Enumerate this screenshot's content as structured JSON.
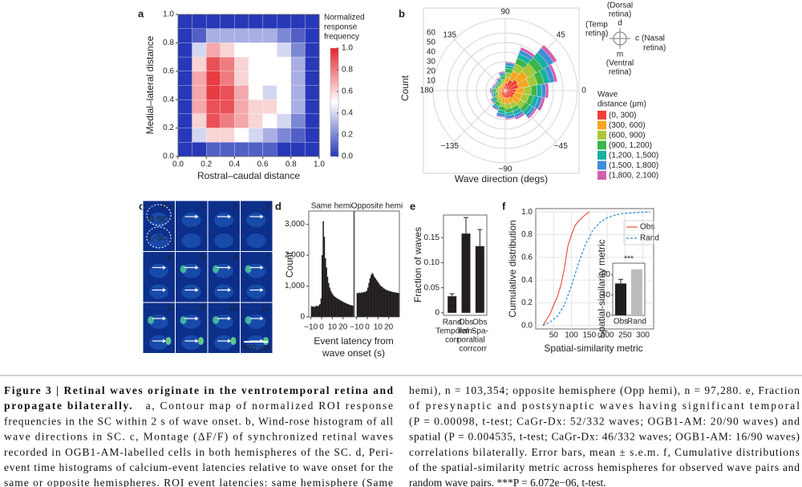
{
  "chart_data": [
    {
      "type": "heatmap",
      "label": "a",
      "xlabel": "Rostral–caudal distance",
      "ylabel": "Medial–lateral distance",
      "colorbar_title": [
        "Normalized",
        "response",
        "frequency"
      ],
      "x": [
        0.05,
        0.15,
        0.25,
        0.35,
        0.45,
        0.55,
        0.65,
        0.75,
        0.85,
        0.95
      ],
      "y": [
        0.95,
        0.85,
        0.75,
        0.65,
        0.55,
        0.45,
        0.35,
        0.25,
        0.15,
        0.05
      ],
      "z": [
        [
          0,
          0,
          0,
          0,
          0,
          0,
          0,
          0,
          0,
          0
        ],
        [
          0,
          0.1,
          0.3,
          0.3,
          0.3,
          0.3,
          0.3,
          0.2,
          0.1,
          0
        ],
        [
          0,
          0.4,
          0.7,
          0.6,
          0.5,
          0.5,
          0.5,
          0.4,
          0.2,
          0
        ],
        [
          0,
          0.6,
          0.9,
          0.8,
          0.6,
          0.5,
          0.5,
          0.5,
          0.3,
          0
        ],
        [
          0,
          0.7,
          0.95,
          0.8,
          0.6,
          0.5,
          0.5,
          0.5,
          0.3,
          0
        ],
        [
          0,
          0.7,
          0.95,
          0.9,
          0.7,
          0.5,
          0.4,
          0.5,
          0.3,
          0
        ],
        [
          0,
          0.7,
          0.9,
          0.9,
          0.7,
          0.6,
          0.6,
          0.5,
          0.3,
          0
        ],
        [
          0,
          0.6,
          0.9,
          0.8,
          0.7,
          0.6,
          0.5,
          0.4,
          0.2,
          0
        ],
        [
          0,
          0.4,
          0.6,
          0.6,
          0.5,
          0.4,
          0.3,
          0.2,
          0.1,
          0
        ],
        [
          0,
          0,
          0.1,
          0.1,
          0.1,
          0.1,
          0.1,
          0,
          0,
          0
        ]
      ],
      "colormap": [
        "#2738b8",
        "#ffffff",
        "#e3262d"
      ],
      "xlim": [
        0,
        1
      ],
      "ylim": [
        0,
        1
      ],
      "zlim": [
        0,
        1
      ],
      "xticks": [
        {
          "value": 0,
          "label": "0.0"
        },
        0.2,
        0.4,
        0.6,
        0.8,
        {
          "value": 1,
          "label": "1.0"
        }
      ],
      "yticks": [
        {
          "value": 0,
          "label": "0.0"
        },
        0.2,
        0.4,
        0.6,
        0.8,
        {
          "value": 1,
          "label": "1.0"
        }
      ],
      "zticks": [
        {
          "value": 0,
          "label": "0.0"
        },
        0.2,
        0.4,
        0.6,
        0.8,
        {
          "value": 1,
          "label": "1.0"
        }
      ]
    },
    {
      "type": "polar_bar",
      "label": "b",
      "xlabel": "Wave direction (degs)",
      "ylabel": "Count",
      "x": [
        0,
        20,
        40,
        60,
        80,
        100,
        120,
        140,
        160,
        180,
        200,
        220,
        240,
        260,
        280,
        300,
        320,
        340
      ],
      "series": [
        {
          "name": "(0, 300)",
          "color": "#ee4036",
          "values": [
            11,
            14,
            15,
            12,
            8,
            5,
            4,
            3,
            4,
            4,
            4,
            5,
            6,
            7,
            8,
            8,
            10,
            10
          ]
        },
        {
          "name": "(300, 600)",
          "color": "#f5a623",
          "values": [
            9,
            11,
            12,
            10,
            6,
            4,
            3,
            3,
            3,
            3,
            3,
            4,
            4,
            6,
            6,
            6,
            8,
            8
          ]
        },
        {
          "name": "(600, 900)",
          "color": "#a6c83a",
          "values": [
            7,
            9,
            10,
            8,
            5,
            3,
            2,
            2,
            2,
            3,
            2,
            3,
            4,
            4,
            5,
            5,
            6,
            7
          ]
        },
        {
          "name": "(900, 1,200)",
          "color": "#3cb54a",
          "values": [
            6,
            7,
            8,
            6,
            4,
            3,
            2,
            2,
            2,
            2,
            2,
            2,
            3,
            4,
            4,
            4,
            5,
            5
          ]
        },
        {
          "name": "(1,200, 1,500)",
          "color": "#19b0a2",
          "values": [
            5,
            6,
            7,
            5,
            3,
            2,
            2,
            1,
            1,
            2,
            2,
            2,
            2,
            3,
            3,
            4,
            4,
            5
          ]
        },
        {
          "name": "(1,500, 1,800)",
          "color": "#3d8fd8",
          "values": [
            4,
            5,
            6,
            4,
            3,
            2,
            1,
            1,
            1,
            1,
            1,
            1,
            2,
            3,
            3,
            3,
            3,
            4
          ]
        },
        {
          "name": "(1,800, 2,100)",
          "color": "#d35fae",
          "values": [
            3,
            3,
            4,
            3,
            1,
            1,
            1,
            1,
            1,
            1,
            1,
            1,
            1,
            1,
            1,
            2,
            2,
            3
          ]
        }
      ],
      "legend_title": [
        "Wave",
        "distance (μm)"
      ],
      "ylim": [
        0,
        75
      ],
      "yticks": [
        10,
        20,
        30,
        40,
        50,
        60
      ],
      "xticks": [
        90,
        45,
        0,
        {
          "value": -45,
          "label": "−45"
        },
        {
          "value": -90,
          "label": "−90"
        },
        {
          "value": -135,
          "label": "−135"
        },
        180,
        135
      ],
      "compass_labels": [
        "(Dorsal",
        "retina)",
        "d",
        "(Temp",
        "retina)",
        "r",
        "c",
        "(Nasal",
        "retina)",
        "m",
        "(Ventral",
        "retina)"
      ]
    },
    {
      "type": "histogram",
      "label": "d",
      "ylabel": "Count",
      "xlabel": [
        "Event latency from",
        "wave onset (s)"
      ],
      "color": "#231f20",
      "bins": [
        -10,
        -9,
        -8,
        -7,
        -6,
        -5,
        -4,
        -3,
        -2,
        -1,
        0,
        1,
        2,
        3,
        4,
        5,
        6,
        7,
        8,
        9,
        10,
        11,
        12,
        13,
        14,
        15,
        16,
        17,
        18,
        19,
        20,
        21,
        22,
        23,
        24,
        25,
        26,
        27,
        28,
        29,
        30
      ],
      "series": [
        {
          "name": "Same hemi",
          "values": [
            350,
            330,
            340,
            320,
            350,
            360,
            340,
            380,
            420,
            600,
            2000,
            3100,
            2600,
            1900,
            1600,
            1300,
            1100,
            950,
            850,
            780,
            720,
            680,
            650,
            620,
            600,
            580,
            560,
            540,
            520,
            500,
            480,
            460,
            450,
            430,
            420,
            400,
            390,
            380,
            370,
            360
          ]
        },
        {
          "name": "Opposite hemi",
          "values": [
            780,
            760,
            790,
            770,
            800,
            780,
            810,
            800,
            820,
            850,
            950,
            1100,
            1250,
            1350,
            1420,
            1380,
            1300,
            1250,
            1200,
            1150,
            1100,
            1050,
            1000,
            980,
            950,
            920,
            900,
            880,
            860,
            850,
            840,
            830,
            820,
            810,
            800,
            800,
            790,
            780,
            780,
            770
          ]
        }
      ],
      "xlim": [
        -12,
        30
      ],
      "ylim": [
        0,
        3300
      ],
      "xticks": [
        {
          "value": -10,
          "label": "−10"
        },
        0,
        10,
        20
      ],
      "yticks": [
        0,
        {
          "value": 1000,
          "label": "1,000"
        },
        {
          "value": 2000,
          "label": "2,000"
        },
        {
          "value": 3000,
          "label": "3,000"
        }
      ]
    },
    {
      "type": "bar",
      "label": "e",
      "ylabel": "Fraction of waves",
      "color": "#231f20",
      "categories": [
        [
          "Rand",
          "Temporal",
          "corr"
        ],
        [
          "Obs",
          "Tem-",
          "poral",
          "corr"
        ],
        [
          "Obs",
          "Spa-",
          "tial",
          "corr"
        ]
      ],
      "values": [
        0.033,
        0.158,
        0.133
      ],
      "errors": [
        0.005,
        0.032,
        0.033
      ],
      "ylim": [
        -0.005,
        0.195
      ],
      "yticks": [
        0,
        0.05,
        {
          "value": 0.1,
          "label": "0.10"
        },
        0.15
      ]
    },
    {
      "type": "line",
      "label": "f",
      "xlabel": "Spatial-similarity metric",
      "ylabel": "Cumulative distribution",
      "grid": true,
      "series": [
        {
          "name": "Obs",
          "color": "#e8573f",
          "dashed": false,
          "x": [
            20,
            30,
            40,
            50,
            60,
            70,
            80,
            90,
            100,
            110,
            120,
            130,
            140,
            150
          ],
          "values": [
            0,
            0.05,
            0.1,
            0.18,
            0.25,
            0.35,
            0.5,
            0.7,
            0.8,
            0.88,
            0.92,
            0.95,
            0.98,
            1
          ]
        },
        {
          "name": "Rand",
          "color": "#2a8fd0",
          "dashed": true,
          "x": [
            20,
            40,
            60,
            80,
            100,
            120,
            140,
            160,
            180,
            200,
            220,
            240,
            260,
            280,
            300,
            320
          ],
          "values": [
            0,
            0.03,
            0.08,
            0.18,
            0.35,
            0.55,
            0.72,
            0.84,
            0.91,
            0.95,
            0.97,
            0.985,
            0.99,
            0.995,
            0.998,
            1
          ]
        }
      ],
      "xlim": [
        0,
        330
      ],
      "ylim": [
        -0.03,
        1.03
      ],
      "xticks": [
        50,
        100,
        150,
        200,
        250,
        300
      ],
      "yticks": [
        {
          "value": 0,
          "label": "0.0"
        },
        0.2,
        0.4,
        0.6,
        0.8,
        {
          "value": 1,
          "label": "1.0"
        }
      ],
      "inset": {
        "type": "bar",
        "ylabel": "Spatial-similarity metric",
        "categories": [
          "Obs",
          "Rand"
        ],
        "values": [
          63,
          91
        ],
        "errors": [
          8,
          null
        ],
        "colors": [
          "#231f20",
          "#bdbdbd"
        ],
        "annotation": "***",
        "ylim": [
          0,
          100
        ],
        "yticks": [
          0,
          40,
          80
        ]
      }
    }
  ],
  "montage": {
    "label": "c",
    "frame_labels": [
      "0 s",
      "1",
      "2",
      "3",
      "4",
      "5",
      "6",
      "7",
      "8",
      "9",
      "10",
      "11"
    ],
    "region_labels": [
      "R-SC",
      "L-SC"
    ],
    "scale_bar": "500 μm"
  },
  "caption": {
    "title_lines": [
      "Figure 3 | Retinal waves originate in the ventrotemporal retina and",
      "propagate bilaterally."
    ],
    "left_lines": [
      "a, Contour map of normalized ROI response",
      "frequencies in the SC within 2 s of wave onset. b, Wind-rose histogram of all",
      "wave directions in SC. c, Montage (ΔF/F) of synchronized retinal waves",
      "recorded in OGB1-AM-labelled cells in both hemispheres of the SC. d, Peri-",
      "event time histograms of calcium-event latencies relative to wave onset for the",
      "same or opposite hemispheres. ROI event latencies: same hemisphere (Same"
    ],
    "right_lines": [
      "hemi), n = 103,354; opposite hemisphere (Opp hemi), n = 97,280. e, Fraction",
      "of presynaptic and postsynaptic waves having significant temporal",
      "(P = 0.00098, t-test; CaGr-Dx: 52/332 waves; OGB1-AM: 20/90 waves) and",
      "spatial (P = 0.004535, t-test; CaGr-Dx: 46/332 waves; OGB1-AM: 16/90 waves)",
      "correlations bilaterally. Error bars, mean ± s.e.m. f, Cumulative distributions",
      "of the spatial-similarity metric across hemispheres for observed wave pairs and",
      "random wave pairs. ***P = 6.072e−06, t-test."
    ]
  }
}
